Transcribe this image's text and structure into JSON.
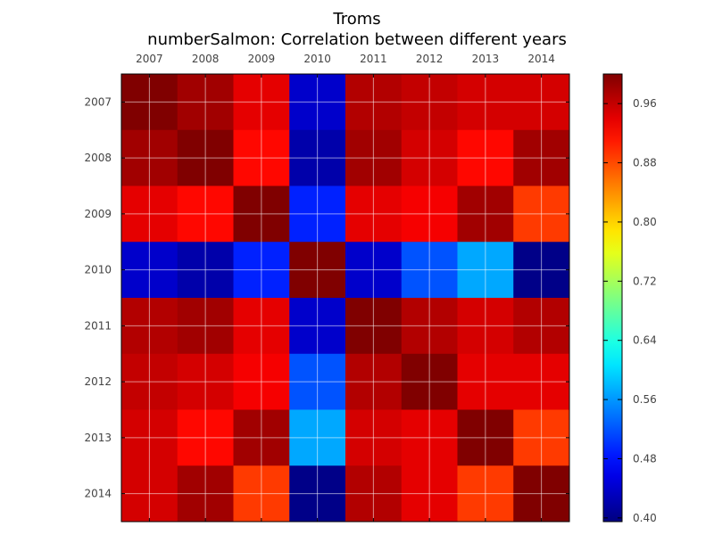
{
  "chart_data": {
    "type": "heatmap",
    "title": "Troms",
    "subtitle": "numberSalmon: Correlation between different years",
    "x_categories": [
      "2007",
      "2008",
      "2009",
      "2010",
      "2011",
      "2012",
      "2013",
      "2014"
    ],
    "y_categories": [
      "2007",
      "2008",
      "2009",
      "2010",
      "2011",
      "2012",
      "2013",
      "2014"
    ],
    "values": [
      [
        1.0,
        0.98,
        0.94,
        0.44,
        0.97,
        0.96,
        0.95,
        0.95
      ],
      [
        0.98,
        1.0,
        0.92,
        0.42,
        0.98,
        0.95,
        0.92,
        0.98
      ],
      [
        0.94,
        0.92,
        1.0,
        0.49,
        0.94,
        0.93,
        0.98,
        0.89
      ],
      [
        0.44,
        0.42,
        0.49,
        1.0,
        0.44,
        0.52,
        0.57,
        0.4
      ],
      [
        0.97,
        0.98,
        0.94,
        0.44,
        1.0,
        0.97,
        0.95,
        0.97
      ],
      [
        0.96,
        0.95,
        0.93,
        0.52,
        0.97,
        1.0,
        0.94,
        0.94
      ],
      [
        0.95,
        0.92,
        0.98,
        0.57,
        0.95,
        0.94,
        1.0,
        0.89
      ],
      [
        0.95,
        0.98,
        0.89,
        0.4,
        0.97,
        0.94,
        0.89,
        1.0
      ]
    ],
    "colormap": "jet",
    "vmin": 0.395,
    "vmax": 1.0,
    "colorbar_ticks": [
      "0.40",
      "0.48",
      "0.56",
      "0.64",
      "0.72",
      "0.80",
      "0.88",
      "0.96"
    ],
    "grid": true,
    "x_axis_position": "top"
  }
}
